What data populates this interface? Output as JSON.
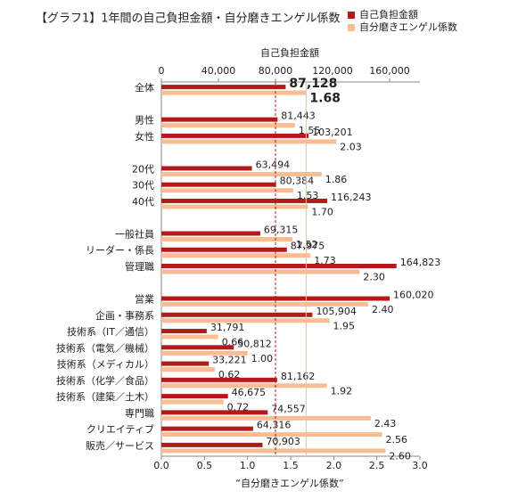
{
  "chart_data": {
    "type": "bar",
    "orientation": "horizontal",
    "title": "【グラフ1】1年間の自己負担金額・自分磨きエンゲル係数",
    "x2_label": "自己負担金額",
    "x_label": "“自分磨きエンゲル係数”",
    "categories": [
      "全体",
      null,
      "男性",
      "女性",
      null,
      "20代",
      "30代",
      "40代",
      null,
      "一般社員",
      "リーダー・係長",
      "管理職",
      null,
      "営業",
      "企画・事務系",
      "技術系（IT／通信）",
      "技術系（電気／機械）",
      "技術系（メディカル）",
      "技術系（化学／食品）",
      "技術系（建築／土木）",
      "専門職",
      "クリエイティブ",
      "販売／サービス"
    ],
    "series": [
      {
        "name": "自己負担金額",
        "color": "#b31b1b",
        "axis": "x2",
        "values": [
          87128,
          null,
          81443,
          103201,
          null,
          63494,
          80384,
          116243,
          null,
          69315,
          87975,
          164823,
          null,
          160020,
          105904,
          31791,
          50812,
          33221,
          81162,
          46675,
          74557,
          64316,
          70903
        ],
        "value_labels": [
          "87,128",
          null,
          "81,443",
          "103,201",
          null,
          "63,494",
          "80,384",
          "116,243",
          null,
          "69,315",
          "87,975",
          "164,823",
          null,
          "160,020",
          "105,904",
          "31,791",
          "50,812",
          "33,221",
          "81,162",
          "46,675",
          "74,557",
          "64,316",
          "70,903"
        ]
      },
      {
        "name": "自分磨きエンゲル係数",
        "color": "#f8bd92",
        "axis": "x",
        "values": [
          1.68,
          null,
          1.55,
          2.03,
          null,
          1.86,
          1.53,
          1.7,
          null,
          1.52,
          1.73,
          2.3,
          null,
          2.4,
          1.95,
          0.66,
          1.0,
          0.62,
          1.92,
          0.72,
          2.43,
          2.56,
          2.6
        ],
        "value_labels": [
          "1.68",
          null,
          "1.55",
          "2.03",
          null,
          "1.86",
          "1.53",
          "1.70",
          null,
          "1.52",
          "1.73",
          "2.30",
          null,
          "2.40",
          "1.95",
          "0.66",
          "1.00",
          "0.62",
          "1.92",
          "0.72",
          "2.43",
          "2.56",
          "2.60"
        ]
      }
    ],
    "xlim": [
      0,
      3
    ],
    "xticks": [
      {
        "value": 0,
        "label": "0.0"
      },
      0.5,
      {
        "value": 1,
        "label": "1.0"
      },
      1.5,
      {
        "value": 2,
        "label": "2.0"
      },
      2.5,
      {
        "value": 3,
        "label": "3.0"
      }
    ],
    "x2lim": [
      0,
      181250
    ],
    "x2ticks": [
      0,
      {
        "value": 40000,
        "label": "40,000"
      },
      {
        "value": 80000,
        "label": "80,000"
      },
      {
        "value": 120000,
        "label": "120,000"
      },
      {
        "value": 160000,
        "label": "160,000"
      }
    ],
    "reference_lines": [
      {
        "axis": "x2",
        "value": 80000,
        "color": "#b31b1b",
        "dashed": true
      },
      {
        "axis": "x",
        "value": 1.68,
        "color": "#f8bd92",
        "dashed": false
      }
    ],
    "legend": "top-right"
  }
}
